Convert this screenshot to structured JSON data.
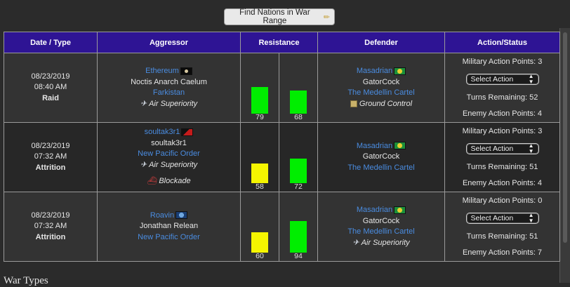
{
  "top_button": {
    "label": "Find Nations in War Range"
  },
  "columns": [
    "Date / Type",
    "Aggressor",
    "Resistance",
    "Defender",
    "Action/Status"
  ],
  "wars": [
    {
      "date": "08/23/2019",
      "time": "08:40 AM",
      "type": "Raid",
      "aggressor": {
        "nation": "Ethereum",
        "leader": "Noctis Anarch Caelum",
        "alliance": "Farkistan",
        "control": [
          "Air Superiority"
        ]
      },
      "resistance": {
        "aggressor": 79,
        "defender": 68,
        "aggressor_color": "#00ee00",
        "defender_color": "#00ee00"
      },
      "defender": {
        "nation": "Masadrian",
        "leader": "GatorCock",
        "alliance": "The Medellin Cartel",
        "control": "Ground Control"
      },
      "status": {
        "military_points": "Military Action Points: 3",
        "select_label": "Select Action",
        "turns_remaining": "Turns Remaining: 52",
        "enemy_points": "Enemy Action Points: 4"
      }
    },
    {
      "date": "08/23/2019",
      "time": "07:32 AM",
      "type": "Attrition",
      "aggressor": {
        "nation": "soultak3r1",
        "leader": "soultak3r1",
        "alliance": "New Pacific Order",
        "control": [
          "Air Superiority",
          "Blockade"
        ]
      },
      "resistance": {
        "aggressor": 58,
        "defender": 72,
        "aggressor_color": "#f5f500",
        "defender_color": "#00ee00"
      },
      "defender": {
        "nation": "Masadrian",
        "leader": "GatorCock",
        "alliance": "The Medellin Cartel",
        "control": ""
      },
      "status": {
        "military_points": "Military Action Points: 3",
        "select_label": "Select Action",
        "turns_remaining": "Turns Remaining: 51",
        "enemy_points": "Enemy Action Points: 4"
      }
    },
    {
      "date": "08/23/2019",
      "time": "07:32 AM",
      "type": "Attrition",
      "aggressor": {
        "nation": "Roavin",
        "leader": "Jonathan Relean",
        "alliance": "New Pacific Order",
        "control": []
      },
      "resistance": {
        "aggressor": 60,
        "defender": 94,
        "aggressor_color": "#f5f500",
        "defender_color": "#00ee00"
      },
      "defender": {
        "nation": "Masadrian",
        "leader": "GatorCock",
        "alliance": "The Medellin Cartel",
        "control": "Air Superiority"
      },
      "status": {
        "military_points": "Military Action Points: 0",
        "select_label": "Select Action",
        "turns_remaining": "Turns Remaining: 51",
        "enemy_points": "Enemy Action Points: 7"
      }
    }
  ],
  "section_heading": "War Types"
}
